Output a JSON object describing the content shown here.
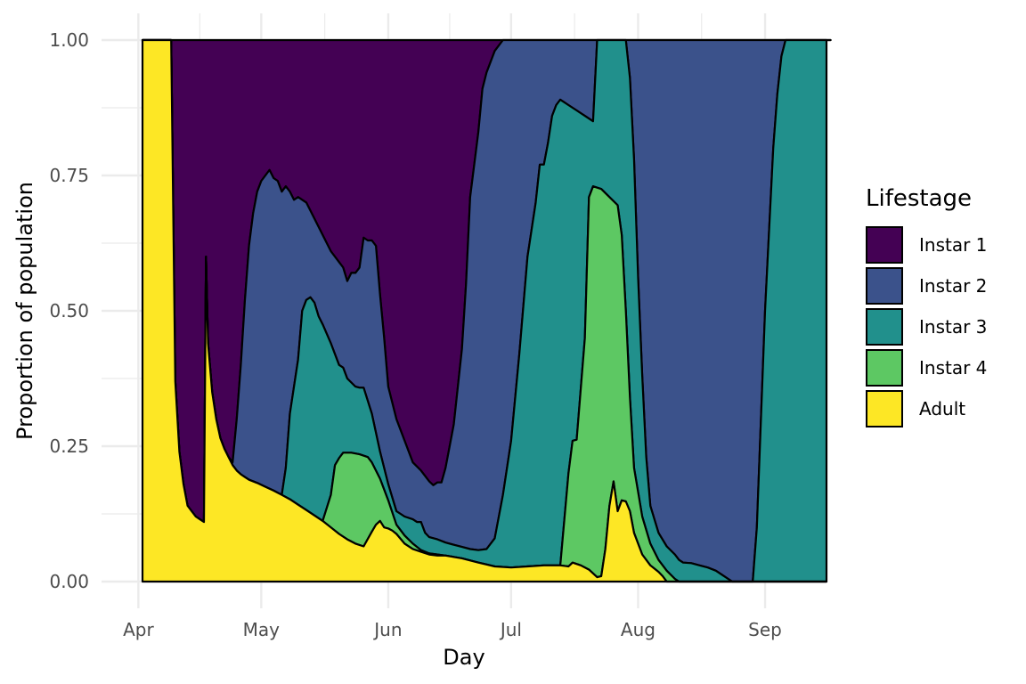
{
  "chart_data": {
    "type": "area",
    "stacked": true,
    "normalized": true,
    "xlabel": "Day",
    "ylabel": "Proportion of population",
    "x_ticks": [
      "Apr",
      "May",
      "Jun",
      "Jul",
      "Aug",
      "Sep"
    ],
    "x_tick_days": [
      1,
      31,
      62,
      92,
      123,
      154
    ],
    "y_ticks": [
      "0.00",
      "0.25",
      "0.50",
      "0.75",
      "1.00"
    ],
    "y_tick_values": [
      0,
      0.25,
      0.5,
      0.75,
      1.0
    ],
    "ylim": [
      0,
      1
    ],
    "xlim_days": [
      -8,
      169
    ],
    "grid": true,
    "legend_position": "right",
    "legend_title": "Lifestage",
    "stack_order_bottom_to_top": [
      "Adult",
      "Instar 4",
      "Instar 3",
      "Instar 2",
      "Instar 1"
    ],
    "series": [
      {
        "name": "Instar 1",
        "color": "#440154"
      },
      {
        "name": "Instar 2",
        "color": "#3B528B"
      },
      {
        "name": "Instar 3",
        "color": "#21908C"
      },
      {
        "name": "Instar 4",
        "color": "#5DC863"
      },
      {
        "name": "Adult",
        "color": "#FDE725"
      }
    ],
    "cumulative_boundaries": {
      "adult_top": [
        [
          2,
          1.0
        ],
        [
          9,
          1.0
        ],
        [
          10,
          0.37
        ],
        [
          11,
          0.24
        ],
        [
          12,
          0.18
        ],
        [
          13,
          0.14
        ],
        [
          14,
          0.13
        ],
        [
          15,
          0.12
        ],
        [
          16,
          0.115
        ],
        [
          17,
          0.11
        ],
        [
          17.5,
          0.6
        ],
        [
          18,
          0.44
        ],
        [
          19,
          0.35
        ],
        [
          20,
          0.3
        ],
        [
          21,
          0.265
        ],
        [
          22,
          0.245
        ],
        [
          23,
          0.23
        ],
        [
          24,
          0.215
        ],
        [
          25,
          0.205
        ],
        [
          26,
          0.198
        ],
        [
          27,
          0.193
        ],
        [
          28,
          0.188
        ],
        [
          30,
          0.182
        ],
        [
          32,
          0.175
        ],
        [
          34,
          0.168
        ],
        [
          36,
          0.16
        ],
        [
          38,
          0.152
        ],
        [
          40,
          0.142
        ],
        [
          42,
          0.132
        ],
        [
          44,
          0.122
        ],
        [
          46,
          0.112
        ],
        [
          48,
          0.1
        ],
        [
          50,
          0.088
        ],
        [
          52,
          0.078
        ],
        [
          54,
          0.07
        ],
        [
          56,
          0.065
        ],
        [
          58,
          0.092
        ],
        [
          59,
          0.105
        ],
        [
          60,
          0.112
        ],
        [
          61,
          0.1
        ],
        [
          62,
          0.098
        ],
        [
          63,
          0.094
        ],
        [
          64,
          0.088
        ],
        [
          66,
          0.07
        ],
        [
          68,
          0.06
        ],
        [
          70,
          0.055
        ],
        [
          72,
          0.05
        ],
        [
          74,
          0.048
        ],
        [
          76,
          0.048
        ],
        [
          80,
          0.043
        ],
        [
          84,
          0.035
        ],
        [
          88,
          0.028
        ],
        [
          92,
          0.026
        ],
        [
          96,
          0.028
        ],
        [
          100,
          0.03
        ],
        [
          104,
          0.03
        ],
        [
          106,
          0.028
        ],
        [
          107,
          0.035
        ],
        [
          109,
          0.03
        ],
        [
          111,
          0.022
        ],
        [
          113,
          0.008
        ],
        [
          114,
          0.01
        ],
        [
          115,
          0.06
        ],
        [
          116,
          0.14
        ],
        [
          117,
          0.185
        ],
        [
          118,
          0.13
        ],
        [
          119,
          0.15
        ],
        [
          120,
          0.148
        ],
        [
          121,
          0.13
        ],
        [
          122,
          0.09
        ],
        [
          124,
          0.05
        ],
        [
          126,
          0.03
        ],
        [
          128,
          0.018
        ],
        [
          129,
          0.01
        ],
        [
          130,
          0.0
        ],
        [
          169,
          0.0
        ]
      ],
      "instar4_top": [
        [
          2,
          1.0
        ],
        [
          9,
          1.0
        ],
        [
          10,
          0.37
        ],
        [
          11,
          0.24
        ],
        [
          12,
          0.18
        ],
        [
          13,
          0.14
        ],
        [
          14,
          0.13
        ],
        [
          15,
          0.12
        ],
        [
          16,
          0.115
        ],
        [
          17,
          0.11
        ],
        [
          17.5,
          0.6
        ],
        [
          18,
          0.44
        ],
        [
          19,
          0.35
        ],
        [
          20,
          0.3
        ],
        [
          21,
          0.265
        ],
        [
          22,
          0.245
        ],
        [
          23,
          0.23
        ],
        [
          24,
          0.215
        ],
        [
          25,
          0.205
        ],
        [
          26,
          0.198
        ],
        [
          27,
          0.193
        ],
        [
          28,
          0.188
        ],
        [
          30,
          0.182
        ],
        [
          32,
          0.175
        ],
        [
          34,
          0.168
        ],
        [
          36,
          0.16
        ],
        [
          38,
          0.152
        ],
        [
          40,
          0.142
        ],
        [
          42,
          0.132
        ],
        [
          44,
          0.122
        ],
        [
          46,
          0.112
        ],
        [
          48,
          0.16
        ],
        [
          49,
          0.215
        ],
        [
          50,
          0.228
        ],
        [
          51,
          0.238
        ],
        [
          53,
          0.238
        ],
        [
          55,
          0.235
        ],
        [
          57,
          0.23
        ],
        [
          58,
          0.22
        ],
        [
          60,
          0.19
        ],
        [
          62,
          0.15
        ],
        [
          64,
          0.105
        ],
        [
          66,
          0.085
        ],
        [
          68,
          0.07
        ],
        [
          70,
          0.058
        ],
        [
          72,
          0.052
        ],
        [
          74,
          0.05
        ],
        [
          76,
          0.048
        ],
        [
          80,
          0.043
        ],
        [
          84,
          0.035
        ],
        [
          88,
          0.028
        ],
        [
          92,
          0.026
        ],
        [
          96,
          0.028
        ],
        [
          100,
          0.03
        ],
        [
          104,
          0.03
        ],
        [
          106,
          0.2
        ],
        [
          107,
          0.26
        ],
        [
          108,
          0.262
        ],
        [
          110,
          0.45
        ],
        [
          111,
          0.71
        ],
        [
          112,
          0.73
        ],
        [
          114,
          0.725
        ],
        [
          116,
          0.71
        ],
        [
          118,
          0.695
        ],
        [
          119,
          0.64
        ],
        [
          120,
          0.5
        ],
        [
          121,
          0.34
        ],
        [
          122,
          0.21
        ],
        [
          124,
          0.12
        ],
        [
          126,
          0.07
        ],
        [
          128,
          0.04
        ],
        [
          130,
          0.02
        ],
        [
          132,
          0.005
        ],
        [
          133,
          0.0
        ],
        [
          169,
          0.0
        ]
      ],
      "instar3_top": [
        [
          2,
          1.0
        ],
        [
          9,
          1.0
        ],
        [
          10,
          0.37
        ],
        [
          11,
          0.24
        ],
        [
          12,
          0.18
        ],
        [
          13,
          0.14
        ],
        [
          14,
          0.13
        ],
        [
          15,
          0.12
        ],
        [
          16,
          0.115
        ],
        [
          17,
          0.11
        ],
        [
          17.5,
          0.6
        ],
        [
          18,
          0.44
        ],
        [
          19,
          0.35
        ],
        [
          20,
          0.3
        ],
        [
          21,
          0.265
        ],
        [
          22,
          0.245
        ],
        [
          23,
          0.23
        ],
        [
          24,
          0.215
        ],
        [
          25,
          0.205
        ],
        [
          26,
          0.198
        ],
        [
          27,
          0.193
        ],
        [
          28,
          0.188
        ],
        [
          30,
          0.182
        ],
        [
          32,
          0.175
        ],
        [
          34,
          0.168
        ],
        [
          36,
          0.16
        ],
        [
          37,
          0.21
        ],
        [
          38,
          0.31
        ],
        [
          40,
          0.41
        ],
        [
          41,
          0.5
        ],
        [
          42,
          0.52
        ],
        [
          43,
          0.525
        ],
        [
          44,
          0.515
        ],
        [
          45,
          0.49
        ],
        [
          46,
          0.475
        ],
        [
          48,
          0.44
        ],
        [
          50,
          0.4
        ],
        [
          51,
          0.395
        ],
        [
          52,
          0.375
        ],
        [
          54,
          0.36
        ],
        [
          55,
          0.358
        ],
        [
          56,
          0.358
        ],
        [
          58,
          0.31
        ],
        [
          60,
          0.24
        ],
        [
          62,
          0.18
        ],
        [
          64,
          0.13
        ],
        [
          66,
          0.12
        ],
        [
          68,
          0.115
        ],
        [
          69,
          0.11
        ],
        [
          70,
          0.11
        ],
        [
          71,
          0.09
        ],
        [
          72,
          0.082
        ],
        [
          74,
          0.078
        ],
        [
          76,
          0.072
        ],
        [
          78,
          0.068
        ],
        [
          80,
          0.064
        ],
        [
          82,
          0.06
        ],
        [
          84,
          0.058
        ],
        [
          86,
          0.06
        ],
        [
          88,
          0.08
        ],
        [
          90,
          0.16
        ],
        [
          92,
          0.26
        ],
        [
          94,
          0.42
        ],
        [
          96,
          0.6
        ],
        [
          98,
          0.7
        ],
        [
          99,
          0.77
        ],
        [
          100,
          0.77
        ],
        [
          101,
          0.81
        ],
        [
          102,
          0.86
        ],
        [
          103,
          0.88
        ],
        [
          104,
          0.89
        ],
        [
          106,
          0.88
        ],
        [
          108,
          0.87
        ],
        [
          110,
          0.86
        ],
        [
          112,
          0.85
        ],
        [
          113,
          1.0
        ],
        [
          120,
          1.0
        ],
        [
          121,
          0.93
        ],
        [
          122,
          0.78
        ],
        [
          123,
          0.56
        ],
        [
          124,
          0.38
        ],
        [
          125,
          0.23
        ],
        [
          126,
          0.14
        ],
        [
          128,
          0.09
        ],
        [
          130,
          0.065
        ],
        [
          132,
          0.05
        ],
        [
          133,
          0.04
        ],
        [
          134,
          0.035
        ],
        [
          136,
          0.034
        ],
        [
          138,
          0.03
        ],
        [
          140,
          0.026
        ],
        [
          142,
          0.02
        ],
        [
          144,
          0.01
        ],
        [
          145,
          0.005
        ],
        [
          146,
          0.0
        ],
        [
          151,
          0.0
        ],
        [
          152,
          0.1
        ],
        [
          153,
          0.3
        ],
        [
          154,
          0.5
        ],
        [
          155,
          0.65
        ],
        [
          156,
          0.8
        ],
        [
          157,
          0.9
        ],
        [
          158,
          0.97
        ],
        [
          159,
          1.0
        ],
        [
          169,
          1.0
        ]
      ],
      "instar2_top": [
        [
          2,
          1.0
        ],
        [
          9,
          1.0
        ],
        [
          10,
          0.37
        ],
        [
          11,
          0.24
        ],
        [
          12,
          0.18
        ],
        [
          13,
          0.14
        ],
        [
          14,
          0.13
        ],
        [
          15,
          0.12
        ],
        [
          16,
          0.115
        ],
        [
          17,
          0.11
        ],
        [
          17.5,
          0.6
        ],
        [
          18,
          0.44
        ],
        [
          19,
          0.35
        ],
        [
          20,
          0.3
        ],
        [
          21,
          0.265
        ],
        [
          22,
          0.245
        ],
        [
          23,
          0.23
        ],
        [
          24,
          0.22
        ],
        [
          25,
          0.3
        ],
        [
          26,
          0.4
        ],
        [
          27,
          0.52
        ],
        [
          28,
          0.62
        ],
        [
          29,
          0.68
        ],
        [
          30,
          0.72
        ],
        [
          31,
          0.74
        ],
        [
          32,
          0.75
        ],
        [
          33,
          0.76
        ],
        [
          34,
          0.745
        ],
        [
          35,
          0.74
        ],
        [
          36,
          0.72
        ],
        [
          37,
          0.73
        ],
        [
          38,
          0.72
        ],
        [
          39,
          0.705
        ],
        [
          40,
          0.71
        ],
        [
          42,
          0.7
        ],
        [
          44,
          0.67
        ],
        [
          46,
          0.64
        ],
        [
          48,
          0.61
        ],
        [
          50,
          0.59
        ],
        [
          51,
          0.58
        ],
        [
          52,
          0.555
        ],
        [
          53,
          0.57
        ],
        [
          54,
          0.57
        ],
        [
          55,
          0.58
        ],
        [
          56,
          0.635
        ],
        [
          57,
          0.63
        ],
        [
          58,
          0.63
        ],
        [
          59,
          0.62
        ],
        [
          60,
          0.53
        ],
        [
          61,
          0.45
        ],
        [
          62,
          0.36
        ],
        [
          64,
          0.3
        ],
        [
          66,
          0.26
        ],
        [
          68,
          0.22
        ],
        [
          70,
          0.205
        ],
        [
          71,
          0.195
        ],
        [
          72,
          0.185
        ],
        [
          73,
          0.178
        ],
        [
          74,
          0.183
        ],
        [
          75,
          0.183
        ],
        [
          76,
          0.21
        ],
        [
          78,
          0.29
        ],
        [
          80,
          0.43
        ],
        [
          81,
          0.55
        ],
        [
          82,
          0.71
        ],
        [
          84,
          0.83
        ],
        [
          85,
          0.91
        ],
        [
          86,
          0.94
        ],
        [
          87,
          0.96
        ],
        [
          88,
          0.98
        ],
        [
          90,
          1.0
        ],
        [
          170,
          1.0
        ]
      ],
      "instar1_top": [
        [
          2,
          1.0
        ],
        [
          169,
          1.0
        ]
      ]
    }
  }
}
